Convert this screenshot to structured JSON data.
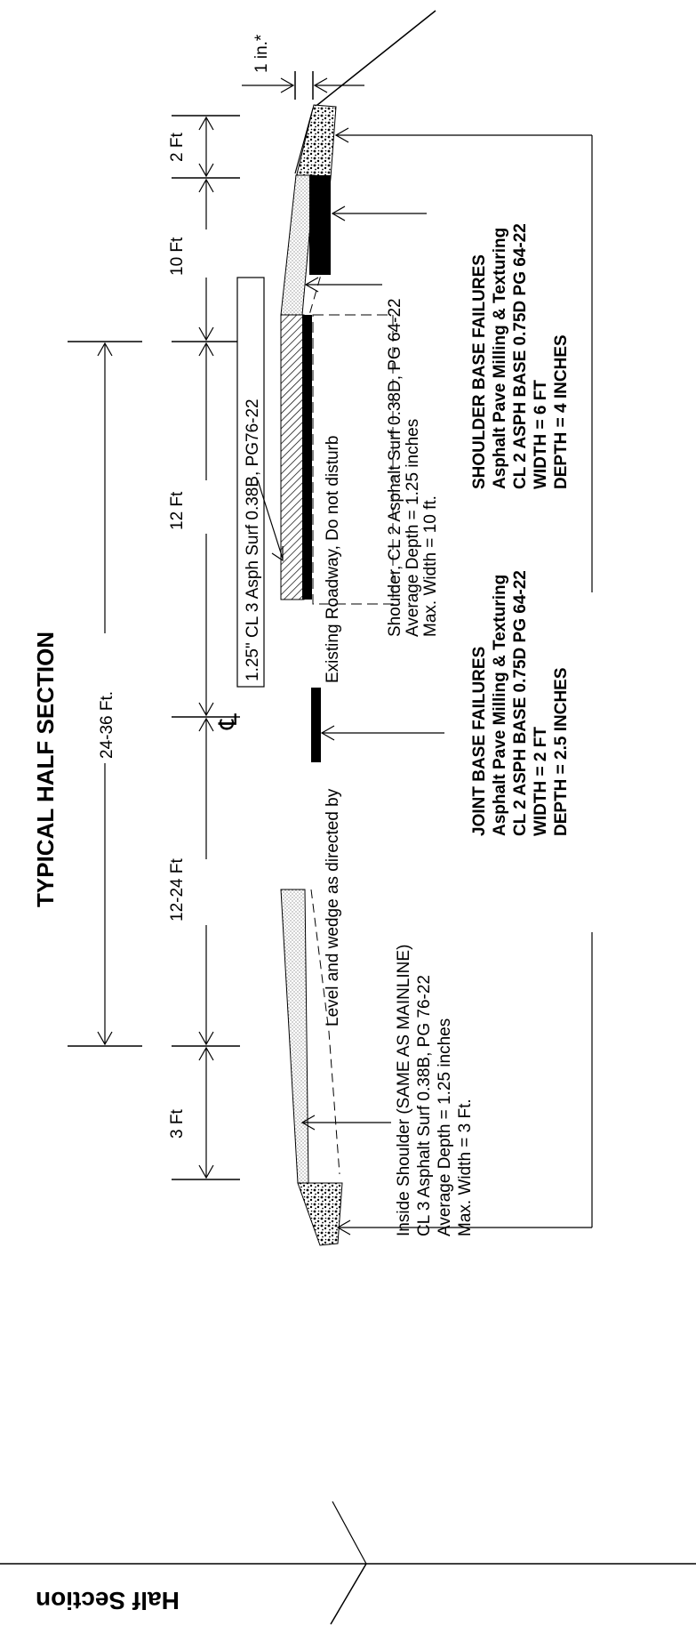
{
  "title": "TYPICAL HALF SECTION",
  "footer_title": "Half Section",
  "dimensions": {
    "top_gap": "1 in.*",
    "outer_shoulder_gap": "2 Ft",
    "outer_shoulder": "10 Ft",
    "outer_lane": "12 Ft",
    "inner_lane": "12-24 Ft",
    "inside_shoulder": "3 Ft",
    "total_width": "24-36 Ft."
  },
  "centerline_symbol": "℄",
  "surface_course_label": "1.25\" CL 3 Asph Surf 0.38B, PG76-22",
  "existing_roadway_label": "Existing Roadway, Do not disturb",
  "level_wedge_label": "Level and wedge as directed by",
  "outside_shoulder_note": {
    "line1": "Shoulder, CL 2 Asphalt Surf 0.38D, PG 64-22",
    "line2": "Average Depth = 1.25 inches",
    "line3": "Max. Width = 10 ft."
  },
  "inside_shoulder_note": {
    "line1": "Inside Shoulder (SAME AS MAINLINE)",
    "line2": "CL 3 Asphalt Surf 0.38B, PG 76-22",
    "line3": "Average Depth =  1.25 inches",
    "line4": "Max. Width = 3 Ft."
  },
  "joint_base_failures": {
    "heading": "JOINT BASE FAILURES",
    "line1": "Asphalt Pave Milling & Texturing",
    "line2": "CL 2 ASPH BASE 0.75D PG 64-22",
    "line3": "WIDTH = 2 FT",
    "line4": "DEPTH = 2.5 INCHES"
  },
  "shoulder_base_failures": {
    "heading": "SHOULDER BASE FAILURES",
    "line1": "Asphalt Pave Milling & Texturing",
    "line2": "CL 2 ASPH BASE 0.75D PG 64-22",
    "line3": "WIDTH = 6 FT",
    "line4": "DEPTH = 4 INCHES"
  }
}
